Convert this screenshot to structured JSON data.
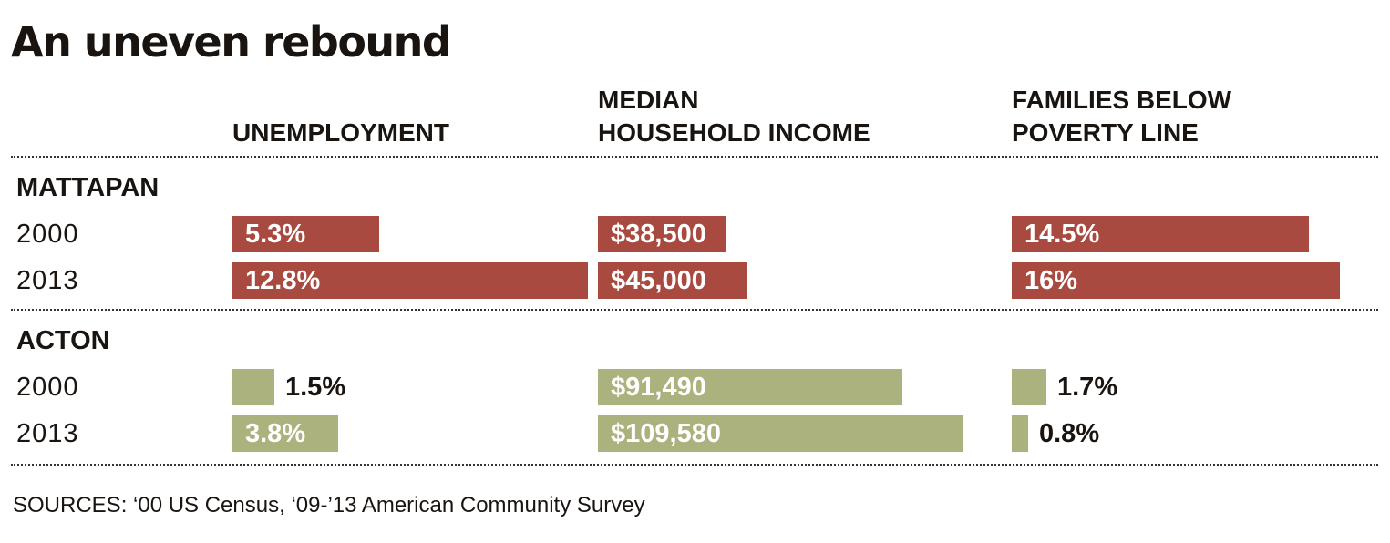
{
  "title": "An uneven rebound",
  "columns": [
    {
      "key": "unemployment",
      "label_lines": [
        "UNEMPLOYMENT"
      ]
    },
    {
      "key": "income",
      "label_lines": [
        "MEDIAN",
        "HOUSEHOLD INCOME"
      ]
    },
    {
      "key": "poverty",
      "label_lines": [
        "FAMILIES BELOW",
        "POVERTY LINE"
      ]
    }
  ],
  "source": "SOURCES: ‘00 US Census, ‘09-’13 American Community Survey",
  "colors": {
    "mattapan": "#a84a40",
    "acton": "#abb27d",
    "text": "#1a1410"
  },
  "chart_data": {
    "type": "bar",
    "title": "An uneven rebound",
    "orientation": "horizontal",
    "groups": [
      {
        "name": "MATTAPAN",
        "rows": [
          {
            "year": "2000",
            "unemployment": {
              "value": 5.3,
              "label": "5.3%"
            },
            "income": {
              "value": 38500,
              "label": "$38,500"
            },
            "poverty": {
              "value": 14.5,
              "label": "14.5%"
            }
          },
          {
            "year": "2013",
            "unemployment": {
              "value": 12.8,
              "label": "12.8%"
            },
            "income": {
              "value": 45000,
              "label": "$45,000"
            },
            "poverty": {
              "value": 16,
              "label": "16%"
            }
          }
        ]
      },
      {
        "name": "ACTON",
        "rows": [
          {
            "year": "2000",
            "unemployment": {
              "value": 1.5,
              "label": "1.5%"
            },
            "income": {
              "value": 91490,
              "label": "$91,490"
            },
            "poverty": {
              "value": 1.7,
              "label": "1.7%"
            }
          },
          {
            "year": "2013",
            "unemployment": {
              "value": 3.8,
              "label": "3.8%"
            },
            "income": {
              "value": 109580,
              "label": "$109,580"
            },
            "poverty": {
              "value": 0.8,
              "label": "0.8%"
            }
          }
        ]
      }
    ]
  }
}
